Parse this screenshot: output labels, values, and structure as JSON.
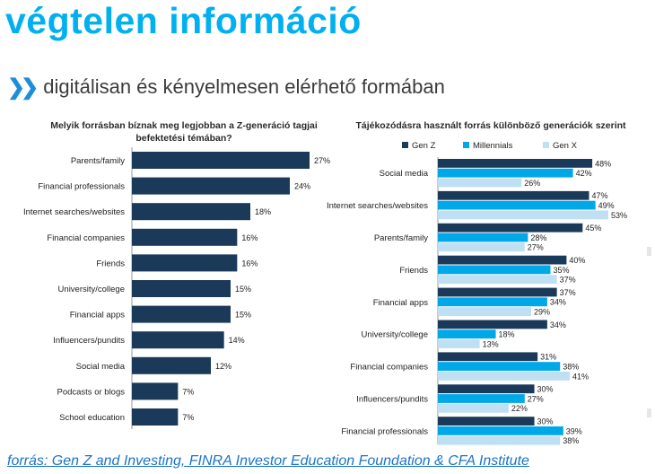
{
  "header": {
    "title": "végtelen információ",
    "subtitle_icon": "double-chevron-right-icon",
    "subtitle": "digitálisan és kényelmesen elérhető formában"
  },
  "colors": {
    "title": "#00b0f0",
    "gen_z": "#1b3a5a",
    "millennials": "#00a8e8",
    "gen_x": "#bfdff3",
    "left_bar": "#1b3a5a",
    "link": "#1b74c8"
  },
  "footer": {
    "source": "forrás: Gen Z and Investing, FINRA Investor Education Foundation & CFA Institute"
  },
  "chart_data": [
    {
      "type": "bar",
      "orientation": "horizontal",
      "title": "Melyik forrásban bíznak meg legjobban a Z-generáció tagjai befektetési témában?",
      "categories": [
        "Parents/family",
        "Financial professionals",
        "Internet searches/websites",
        "Financial companies",
        "Friends",
        "University/college",
        "Financial apps",
        "Influencers/pundits",
        "Social media",
        "Podcasts or blogs",
        "School education"
      ],
      "values": [
        27,
        24,
        18,
        16,
        16,
        15,
        15,
        14,
        12,
        7,
        7
      ],
      "value_suffix": "%",
      "xlim": [
        0,
        27
      ]
    },
    {
      "type": "bar",
      "orientation": "horizontal",
      "title": "Tájékozódásra használt forrás különböző generációk szerint",
      "categories": [
        "Social media",
        "Internet searches/websites",
        "Parents/family",
        "Friends",
        "Financial apps",
        "University/college",
        "Financial companies",
        "Influencers/pundits",
        "Financial professionals"
      ],
      "series": [
        {
          "name": "Gen Z",
          "values": [
            48,
            47,
            45,
            40,
            37,
            34,
            31,
            30,
            30
          ]
        },
        {
          "name": "Millennials",
          "values": [
            42,
            49,
            28,
            35,
            34,
            18,
            38,
            27,
            39
          ]
        },
        {
          "name": "Gen X",
          "values": [
            26,
            53,
            27,
            37,
            29,
            13,
            41,
            22,
            38
          ]
        }
      ],
      "value_suffix": "%",
      "legend": "top",
      "xlim": [
        0,
        53
      ]
    }
  ]
}
